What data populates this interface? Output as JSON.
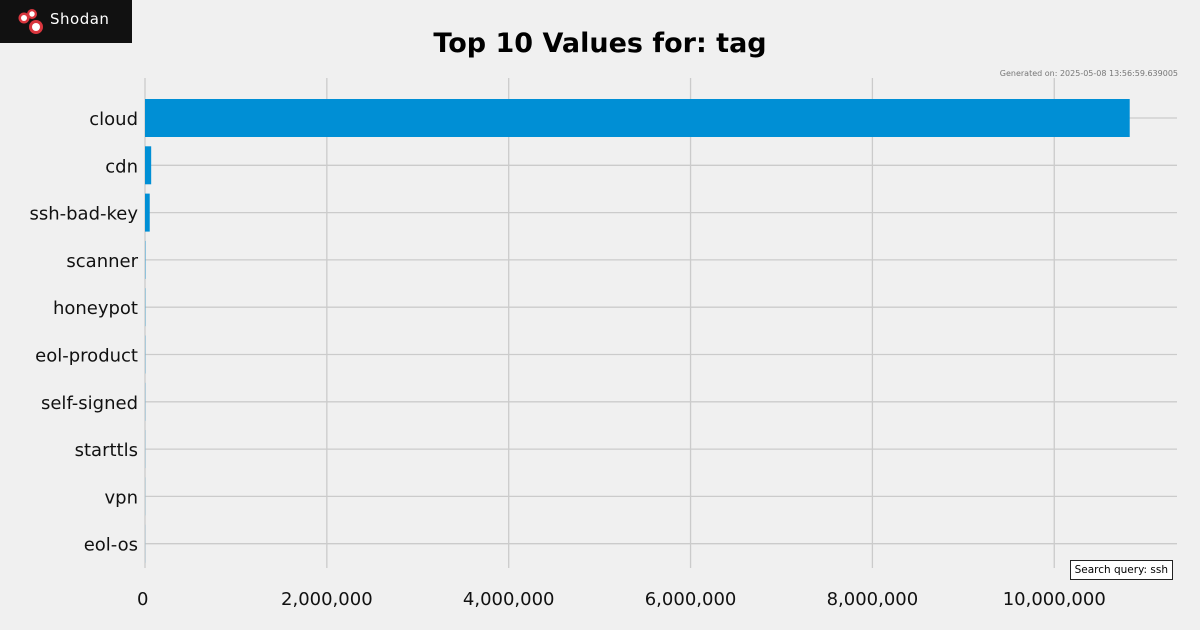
{
  "brand": {
    "name": "Shodan",
    "colors": {
      "logo_bg": "#111111",
      "logo_mark": "#d9363e",
      "bar": "#008fd5"
    }
  },
  "generated_label": "Generated on: 2025-05-08 13:56:59.639005",
  "query_label": "Search query: ssh",
  "chart_data": {
    "type": "bar",
    "orientation": "horizontal",
    "title": "Top 10 Values for: tag",
    "xlabel": "",
    "ylabel": "",
    "categories": [
      "cloud",
      "cdn",
      "ssh-bad-key",
      "scanner",
      "honeypot",
      "eol-product",
      "self-signed",
      "starttls",
      "vpn",
      "eol-os"
    ],
    "values": [
      10830000,
      68000,
      52000,
      4000,
      3000,
      2500,
      2000,
      1500,
      1200,
      1000
    ],
    "xlim": [
      0,
      11350000
    ],
    "xticks": [
      0,
      2000000,
      4000000,
      6000000,
      8000000,
      10000000
    ],
    "xtick_labels": [
      "0",
      "2,000,000",
      "4,000,000",
      "6,000,000",
      "8,000,000",
      "10,000,000"
    ],
    "grid": true
  }
}
